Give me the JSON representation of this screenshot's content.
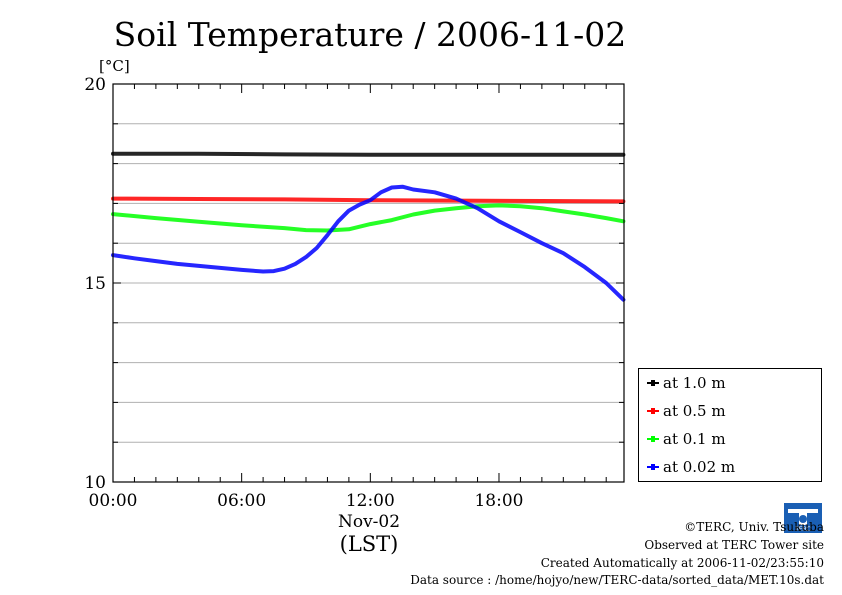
{
  "chart_data": {
    "type": "line",
    "title": "Soil Temperature / 2006-11-02",
    "unit_label": "[°C]",
    "ylim": [
      10,
      20
    ],
    "xlim": [
      0,
      23.83
    ],
    "y_ticks": [
      "10",
      "15",
      "20"
    ],
    "x_ticks": [
      {
        "hour": 0,
        "label": "00:00"
      },
      {
        "hour": 6,
        "label": "06:00"
      },
      {
        "hour": 12,
        "label": "12:00"
      },
      {
        "hour": 18,
        "label": "18:00"
      }
    ],
    "date_label": "Nov-02",
    "time_zone_label": "(LST)",
    "grid": "horizontal",
    "legend_position": "right",
    "series": [
      {
        "name": "at 1.0 m",
        "color": "#000000",
        "x": [
          0,
          4,
          8,
          12,
          16,
          20,
          23.8
        ],
        "y": [
          18.25,
          18.25,
          18.23,
          18.22,
          18.22,
          18.22,
          18.22
        ]
      },
      {
        "name": "at 0.5 m",
        "color": "#ff0000",
        "x": [
          0,
          4,
          8,
          12,
          16,
          20,
          23.8
        ],
        "y": [
          17.12,
          17.11,
          17.1,
          17.08,
          17.07,
          17.06,
          17.05
        ]
      },
      {
        "name": "at 0.1 m",
        "color": "#00ff00",
        "x": [
          0,
          2,
          4,
          6,
          8,
          9,
          10,
          11,
          12,
          13,
          14,
          15,
          16,
          17,
          18,
          19,
          20,
          21,
          22,
          23,
          23.8
        ],
        "y": [
          16.73,
          16.63,
          16.54,
          16.45,
          16.38,
          16.33,
          16.32,
          16.35,
          16.48,
          16.58,
          16.72,
          16.82,
          16.88,
          16.93,
          16.95,
          16.93,
          16.88,
          16.8,
          16.72,
          16.63,
          16.55
        ]
      },
      {
        "name": "at 0.02 m",
        "color": "#0000ff",
        "x": [
          0,
          1,
          2,
          3,
          4,
          5,
          6,
          7,
          7.5,
          8,
          8.5,
          9,
          9.5,
          10,
          10.5,
          11,
          11.5,
          12,
          12.5,
          13,
          13.5,
          14,
          15,
          16,
          17,
          18,
          19,
          20,
          21,
          22,
          23,
          23.8
        ],
        "y": [
          15.7,
          15.62,
          15.55,
          15.48,
          15.43,
          15.38,
          15.33,
          15.29,
          15.3,
          15.36,
          15.48,
          15.65,
          15.88,
          16.2,
          16.55,
          16.82,
          16.97,
          17.08,
          17.28,
          17.4,
          17.42,
          17.35,
          17.28,
          17.12,
          16.88,
          16.55,
          16.28,
          16.0,
          15.75,
          15.4,
          15.0,
          14.58
        ]
      }
    ]
  },
  "footer": {
    "copyright": "©TERC, Univ. Tsukuba",
    "observed": "Observed at TERC Tower site",
    "created": "Created Automatically at 2006-11-02/23:55:10",
    "source": "Data source : /home/hojyo/new/TERC-data/sorted_data/MET.10s.dat",
    "logo_text": "TERC"
  }
}
